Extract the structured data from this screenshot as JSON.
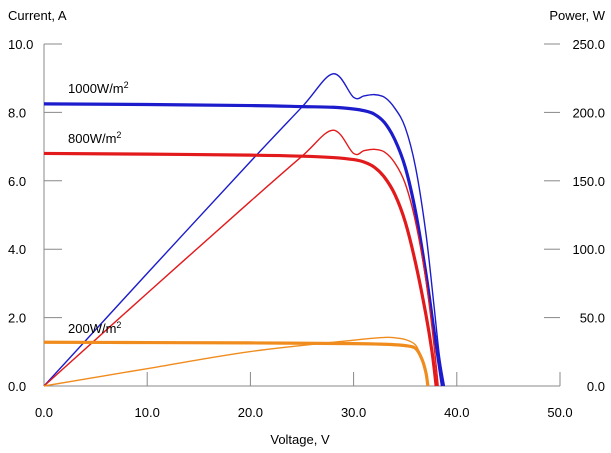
{
  "chart_data": {
    "type": "line",
    "xlabel": "Voltage, V",
    "ylabel_left": "Current, A",
    "ylabel_right": "Power, W",
    "xlim": [
      0,
      50
    ],
    "ylim_left": [
      0,
      10
    ],
    "ylim_right": [
      0,
      250
    ],
    "x_ticks": [
      "0.0",
      "10.0",
      "20.0",
      "30.0",
      "40.0",
      "50.0"
    ],
    "y_left_ticks": [
      "0.0",
      "2.0",
      "4.0",
      "6.0",
      "8.0",
      "10.0"
    ],
    "y_right_ticks": [
      "0.0",
      "50.0",
      "100.0",
      "150.0",
      "200.0",
      "250.0"
    ],
    "grid": false,
    "series": [
      {
        "label": "1000W/m²",
        "label_text": "1000W/m",
        "label_sup": "2",
        "color": "#1c1ccc",
        "iv_points": [
          [
            0,
            8.25
          ],
          [
            10,
            8.23
          ],
          [
            20,
            8.2
          ],
          [
            25,
            8.17
          ],
          [
            28,
            8.15
          ],
          [
            30,
            8.1
          ],
          [
            31,
            8.05
          ],
          [
            32,
            7.95
          ],
          [
            33,
            7.7
          ],
          [
            34,
            7.2
          ],
          [
            35,
            6.4
          ],
          [
            36,
            5.1
          ],
          [
            37,
            3.3
          ],
          [
            37.8,
            1.6
          ],
          [
            38.3,
            0.6
          ],
          [
            38.6,
            0
          ]
        ],
        "power_points": [
          [
            0,
            0
          ],
          [
            10,
            82.3
          ],
          [
            20,
            164
          ],
          [
            25,
            204
          ],
          [
            28,
            228.2
          ],
          [
            30,
            211
          ],
          [
            31,
            212
          ],
          [
            32,
            213
          ],
          [
            33,
            211
          ],
          [
            34,
            203
          ],
          [
            35,
            189
          ],
          [
            36,
            160
          ],
          [
            37,
            112
          ],
          [
            37.8,
            58
          ],
          [
            38.3,
            23
          ],
          [
            38.8,
            0
          ]
        ]
      },
      {
        "label": "800W/m²",
        "label_text": "800W/m",
        "label_sup": "2",
        "color": "#e31a1c",
        "iv_points": [
          [
            0,
            6.8
          ],
          [
            10,
            6.78
          ],
          [
            20,
            6.75
          ],
          [
            25,
            6.72
          ],
          [
            28,
            6.68
          ],
          [
            30,
            6.62
          ],
          [
            31,
            6.55
          ],
          [
            32,
            6.4
          ],
          [
            33,
            6.1
          ],
          [
            34,
            5.6
          ],
          [
            35,
            4.8
          ],
          [
            36,
            3.6
          ],
          [
            37,
            2.1
          ],
          [
            37.6,
            1.0
          ],
          [
            38,
            0
          ]
        ],
        "power_points": [
          [
            0,
            0
          ],
          [
            10,
            67.8
          ],
          [
            20,
            135
          ],
          [
            25,
            168
          ],
          [
            28,
            187
          ],
          [
            30,
            170
          ],
          [
            31,
            172
          ],
          [
            32,
            173
          ],
          [
            33,
            171
          ],
          [
            34,
            163
          ],
          [
            35,
            148
          ],
          [
            36,
            120
          ],
          [
            37,
            78
          ],
          [
            37.7,
            36
          ],
          [
            38.2,
            0
          ]
        ]
      },
      {
        "label": "200W/m²",
        "label_text": "200W/m",
        "label_sup": "2",
        "color": "#f08c1e",
        "iv_points": [
          [
            0,
            1.28
          ],
          [
            10,
            1.27
          ],
          [
            20,
            1.26
          ],
          [
            30,
            1.24
          ],
          [
            33,
            1.22
          ],
          [
            35,
            1.18
          ],
          [
            36,
            1.1
          ],
          [
            36.6,
            0.8
          ],
          [
            37,
            0.4
          ],
          [
            37.2,
            0
          ]
        ],
        "power_points": [
          [
            0,
            0
          ],
          [
            10,
            12.7
          ],
          [
            20,
            25.2
          ],
          [
            30,
            33.5
          ],
          [
            33,
            35.5
          ],
          [
            34,
            35.2
          ],
          [
            35,
            34
          ],
          [
            36,
            30
          ],
          [
            36.6,
            20
          ],
          [
            37,
            9
          ],
          [
            37.2,
            0
          ]
        ]
      }
    ]
  }
}
